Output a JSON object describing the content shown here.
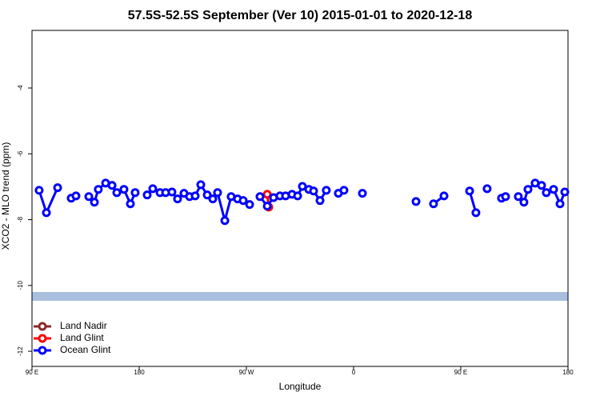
{
  "chart_data": {
    "type": "line",
    "title": "57.5S-52.5S September (Ver 10)   2015-01-01 to 2020-12-18",
    "x_label": "Longitude",
    "y_label": "XCO2 - MLO trend (ppm)",
    "xlim": [
      90,
      540
    ],
    "ylim": [
      -12.46,
      -2.25
    ],
    "xticks": [
      {
        "value": 90,
        "label": "90 E"
      },
      {
        "value": 180,
        "label": "180"
      },
      {
        "value": 270,
        "label": "90 W"
      },
      {
        "value": 360,
        "label": "0"
      },
      {
        "value": 450,
        "label": "90 E"
      },
      {
        "value": 540,
        "label": "180"
      }
    ],
    "yticks": [
      -12,
      -10,
      -8,
      -6,
      -4
    ],
    "legend": "lower left",
    "series": [
      {
        "name": "Land Nadir",
        "color": "#8b2a2a",
        "x": [],
        "values": []
      },
      {
        "name": "Land Glint",
        "color": "#ff0000",
        "x": [
          287.5,
          288.8
        ],
        "values": [
          -7.23,
          -7.62
        ]
      },
      {
        "name": "Ocean Glint",
        "color": "#0000ff",
        "x": [
          96.0,
          102.1,
          111.5,
          null,
          122.9,
          126.9,
          null,
          137.7,
          142.4,
          145.7,
          151.8,
          157.2,
          161.2,
          167.2,
          172.6,
          176.6,
          null,
          186.7,
          191.4,
          197.5,
          202.2,
          207.5,
          212.2,
          217.6,
          222.3,
          227.0,
          231.7,
          237.1,
          241.8,
          245.8,
          251.9,
          257.2,
          262.6,
          267.3,
          272.7,
          null,
          281.4,
          287.5,
          292.8,
          298.2,
          302.9,
          308.3,
          313.0,
          317.0,
          322.4,
          326.4,
          331.8,
          337.1,
          null,
          347.2,
          351.9,
          null,
          367.4,
          null,
          412.4,
          null,
          427.1,
          435.9,
          null,
          457.4,
          462.7,
          null,
          472.1,
          null,
          484.2,
          487.6,
          null,
          498.3,
          503.0,
          506.4,
          512.4,
          517.8,
          521.8,
          527.9,
          533.3,
          537.3
        ],
        "values": [
          -7.11,
          -7.79,
          -7.03,
          null,
          -7.35,
          -7.28,
          null,
          -7.3,
          -7.47,
          -7.08,
          -6.89,
          -6.96,
          -7.18,
          -7.08,
          -7.52,
          -7.18,
          null,
          -7.25,
          -7.06,
          -7.18,
          -7.18,
          -7.16,
          -7.37,
          -7.2,
          -7.3,
          -7.28,
          -6.94,
          -7.25,
          -7.37,
          -7.18,
          -8.03,
          -7.3,
          -7.37,
          -7.42,
          -7.54,
          null,
          -7.3,
          -7.59,
          -7.33,
          -7.28,
          -7.28,
          -7.23,
          -7.28,
          -6.99,
          -7.08,
          -7.13,
          -7.42,
          -7.11,
          null,
          -7.2,
          -7.11,
          null,
          -7.2,
          null,
          -7.45,
          null,
          -7.52,
          -7.28,
          null,
          -7.13,
          -7.79,
          null,
          -7.06,
          null,
          -7.35,
          -7.3,
          null,
          -7.3,
          -7.47,
          -7.08,
          -6.89,
          -6.96,
          -7.18,
          -7.08,
          -7.52,
          -7.16
        ]
      }
    ]
  }
}
